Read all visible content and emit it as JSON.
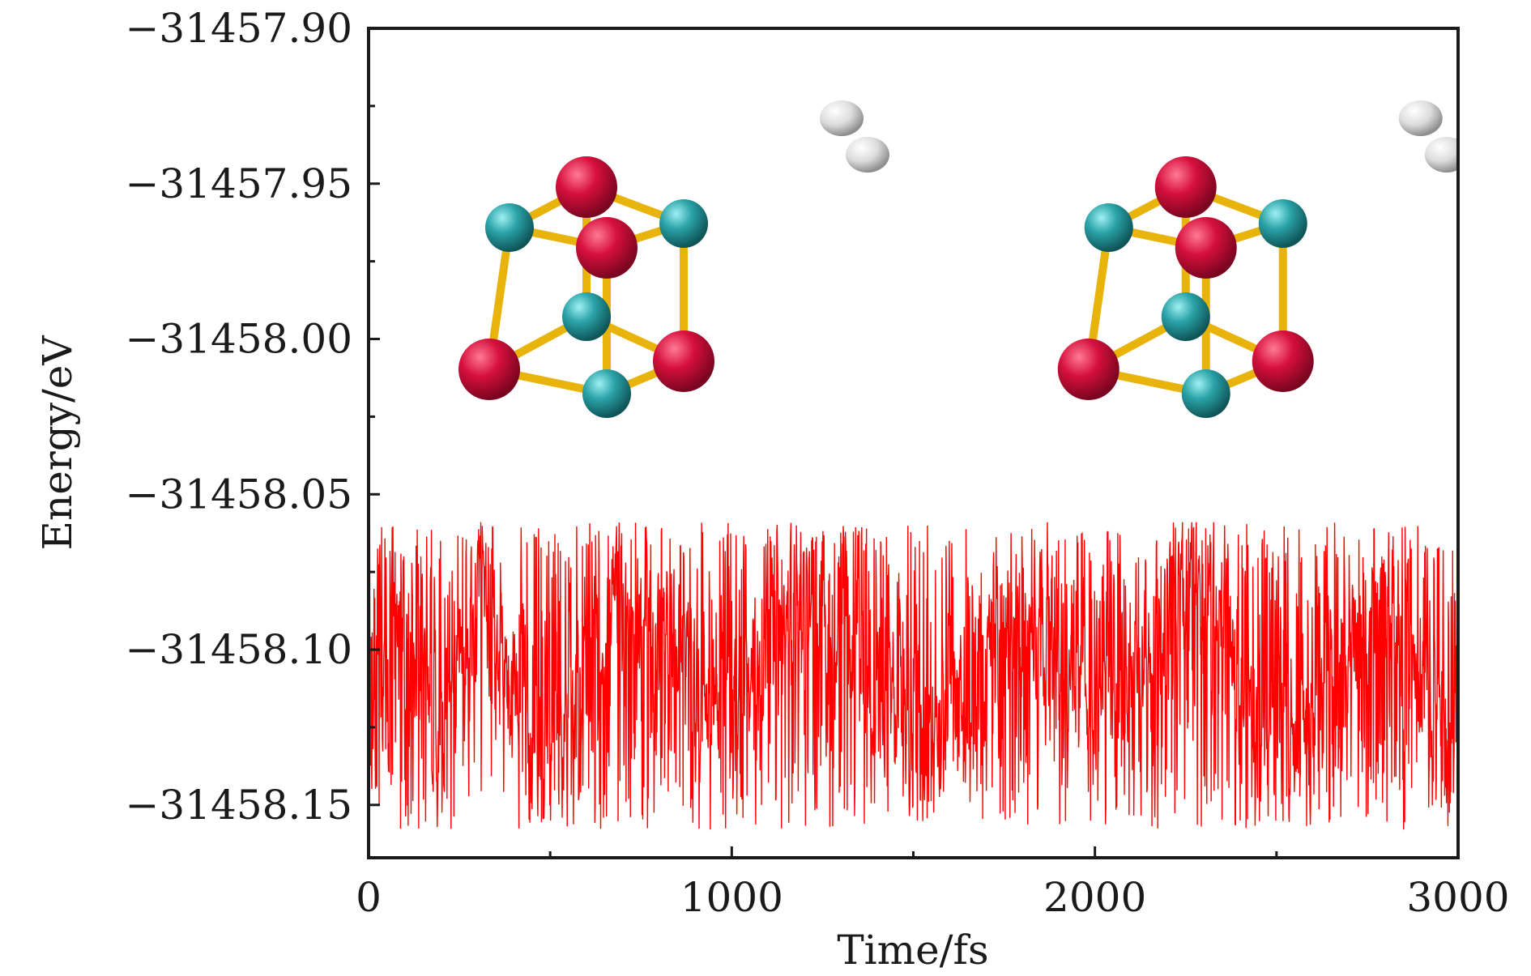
{
  "chart_data": {
    "type": "line",
    "title": "",
    "xlabel": "Time/fs",
    "ylabel": "Energy/eV",
    "xlim": [
      0,
      3000
    ],
    "ylim": [
      -31458.167,
      -31457.9
    ],
    "x_ticks": [
      0,
      1000,
      2000,
      3000
    ],
    "x_tick_labels": [
      "0",
      "1000",
      "2000",
      "3000"
    ],
    "x_minor_ticks": [
      500,
      1500,
      2500
    ],
    "y_ticks": [
      -31457.9,
      -31457.95,
      -31458.0,
      -31458.05,
      -31458.1,
      -31458.15
    ],
    "y_tick_labels": [
      "−31457.90",
      "−31457.95",
      "−31458.00",
      "−31458.05",
      "−31458.10",
      "−31458.15"
    ],
    "y_minor_ticks": [
      -31457.925,
      -31457.975,
      -31458.025,
      -31458.075,
      -31458.125
    ],
    "grid": false,
    "series": [
      {
        "color": "#ff0000",
        "x_start": 0,
        "x_end": 3000,
        "step": 1,
        "y_min": -31458.158,
        "y_max": -31458.059,
        "y_mean": -31458.108,
        "description_points": [
          [
            0,
            -31458.145
          ],
          [
            100,
            -31458.08
          ],
          [
            200,
            -31458.13
          ],
          [
            300,
            -31458.07
          ],
          [
            500,
            -31458.15
          ],
          [
            700,
            -31458.07
          ],
          [
            1000,
            -31458.12
          ],
          [
            1200,
            -31458.065
          ],
          [
            1500,
            -31458.14
          ],
          [
            1800,
            -31458.07
          ],
          [
            2000,
            -31458.13
          ],
          [
            2300,
            -31458.06
          ],
          [
            2500,
            -31458.15
          ],
          [
            2800,
            -31458.07
          ],
          [
            3000,
            -31458.155
          ]
        ]
      }
    ],
    "insets": [
      {
        "kind": "molecular-structure",
        "x": 600,
        "y": -31457.985,
        "atoms": "Cu-O cube + H2"
      },
      {
        "kind": "molecular-structure",
        "x": 2250,
        "y": -31457.985,
        "atoms": "Cu-O cube + H2"
      }
    ],
    "colors": {
      "line": "#ff0000",
      "oxygen": "#d6103c",
      "metal": "#2aa3a8",
      "bond": "#e8b40c",
      "hydrogen": "#e6e6e6"
    }
  }
}
